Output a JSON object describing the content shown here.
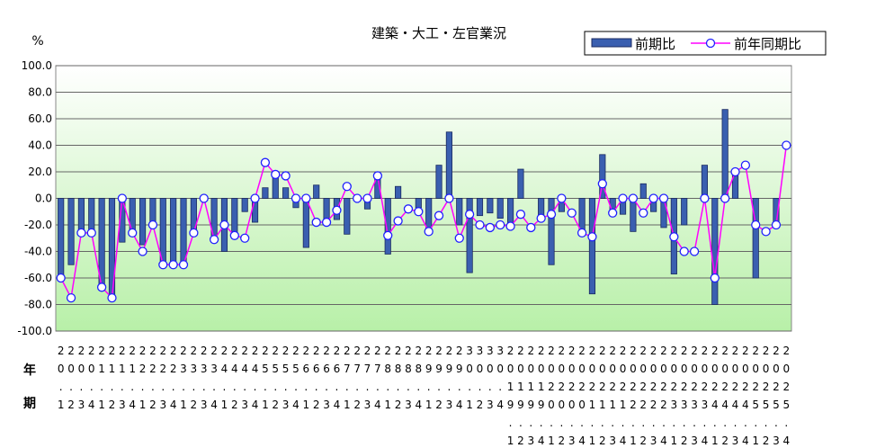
{
  "chart_data": {
    "type": "bar_line",
    "title": "建築・大工・左官業況",
    "y_unit": "%",
    "x_row_labels": [
      "年",
      "期"
    ],
    "categories": [
      "20.1",
      "20.2",
      "20.3",
      "20.4",
      "21.1",
      "21.2",
      "21.3",
      "21.4",
      "22.1",
      "22.2",
      "22.3",
      "22.4",
      "23.1",
      "23.2",
      "23.3",
      "23.4",
      "24.1",
      "24.2",
      "24.3",
      "24.4",
      "25.1",
      "25.2",
      "25.3",
      "25.4",
      "26.1",
      "26.2",
      "26.3",
      "26.4",
      "27.1",
      "27.2",
      "27.3",
      "27.4",
      "28.1",
      "28.2",
      "28.3",
      "28.4",
      "29.1",
      "29.2",
      "29.3",
      "29.4",
      "30.1",
      "30.2",
      "30.3",
      "30.4",
      "2019.1",
      "2019.2",
      "2019.3",
      "2019.4",
      "2020.1",
      "2020.2",
      "2020.3",
      "2020.4",
      "2021.1",
      "2021.2",
      "2021.3",
      "2021.4",
      "2022.1",
      "2022.2",
      "2022.3",
      "2022.4",
      "2023.1",
      "2023.2",
      "2023.3",
      "2023.4",
      "2024.1",
      "2024.2",
      "2024.3",
      "2024.4",
      "2025.1",
      "2025.2",
      "2025.3",
      "2025.4"
    ],
    "series": [
      {
        "name": "前期比",
        "kind": "bar",
        "color": "#3a5fb0",
        "values": [
          -58,
          -50,
          -25,
          -25,
          -68,
          -75,
          -33,
          -25,
          -35,
          -20,
          -50,
          -50,
          -50,
          -25,
          0,
          -30,
          -40,
          -25,
          -10,
          -18,
          8,
          18,
          8,
          -7,
          -37,
          10,
          -18,
          -16,
          -27,
          0,
          -8,
          18,
          -42,
          9,
          0,
          -7,
          -25,
          25,
          50,
          -20,
          -56,
          -13,
          -11,
          -15,
          -20,
          22,
          0,
          -17,
          -50,
          -10,
          0,
          -25,
          -72,
          33,
          -10,
          -12,
          -25,
          11,
          -10,
          -22,
          -57,
          -20,
          0,
          25,
          -80,
          67,
          17,
          0,
          -60,
          0,
          -20,
          null
        ]
      },
      {
        "name": "前年同期比",
        "kind": "line",
        "color": "#ff00ff",
        "values": [
          -60,
          -75,
          -26,
          -26,
          -67,
          -75,
          0,
          -26,
          -40,
          -20,
          -50,
          -50,
          -50,
          -26,
          0,
          -31,
          -20,
          -28,
          -30,
          0,
          27,
          18,
          17,
          0,
          0,
          -18,
          -18,
          -9,
          9,
          0,
          0,
          17,
          -28,
          -17,
          -8,
          -10,
          -25,
          -13,
          0,
          -30,
          -12,
          -20,
          -22,
          -20,
          -21,
          -12,
          -22,
          -15,
          -12,
          0,
          -11,
          -26,
          -29,
          11,
          -11,
          0,
          0,
          -11,
          0,
          0,
          -29,
          -40,
          -40,
          0,
          -60,
          0,
          20,
          25,
          -20,
          -25,
          -20,
          40
        ]
      }
    ],
    "ylim": [
      -100,
      100
    ],
    "yticks": [
      {
        "value": -100,
        "label": "-100.0"
      },
      {
        "value": -80,
        "label": "-80.0"
      },
      {
        "value": -60,
        "label": "-60.0"
      },
      {
        "value": -40,
        "label": "-40.0"
      },
      {
        "value": -20,
        "label": "-20.0"
      },
      {
        "value": 0,
        "label": "0.0"
      },
      {
        "value": 20,
        "label": "20.0"
      },
      {
        "value": 40,
        "label": "40.0"
      },
      {
        "value": 60,
        "label": "60.0"
      },
      {
        "value": 80,
        "label": "80.0"
      },
      {
        "value": 100,
        "label": "100.0"
      }
    ],
    "grid": true,
    "legend": "top-right"
  }
}
